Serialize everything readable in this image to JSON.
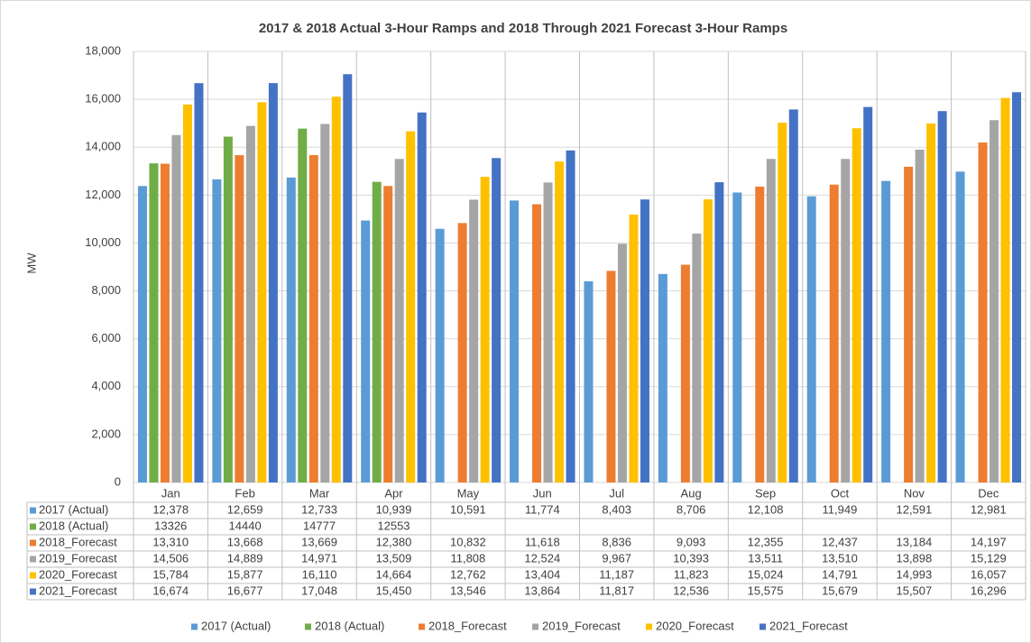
{
  "chart_data": {
    "type": "bar",
    "title": "2017 & 2018 Actual 3-Hour Ramps and 2018 Through 2021 Forecast 3-Hour Ramps",
    "y_label": "MW",
    "categories": [
      "Jan",
      "Feb",
      "Mar",
      "Apr",
      "May",
      "Jun",
      "Jul",
      "Aug",
      "Sep",
      "Oct",
      "Nov",
      "Dec"
    ],
    "ylim": [
      0,
      18000
    ],
    "yticks": [
      0,
      {
        "value": 2000,
        "label": "2,000"
      },
      {
        "value": 4000,
        "label": "4,000"
      },
      {
        "value": 6000,
        "label": "6,000"
      },
      {
        "value": 8000,
        "label": "8,000"
      },
      {
        "value": 10000,
        "label": "10,000"
      },
      {
        "value": 12000,
        "label": "12,000"
      },
      {
        "value": 14000,
        "label": "14,000"
      },
      {
        "value": 16000,
        "label": "16,000"
      },
      {
        "value": 18000,
        "label": "18,000"
      }
    ],
    "grid": true,
    "legend": "bottom",
    "series": [
      {
        "name": "2017 (Actual)",
        "color": "#5b9bd5",
        "values": [
          12378,
          12659,
          12733,
          10939,
          10591,
          11774,
          8403,
          8706,
          12108,
          11949,
          12591,
          12981
        ],
        "value_labels": [
          "12,378",
          "12,659",
          "12,733",
          "10,939",
          "10,591",
          "11,774",
          "8,403",
          "8,706",
          "12,108",
          "11,949",
          "12,591",
          "12,981"
        ]
      },
      {
        "name": "2018 (Actual)",
        "color": "#70ad47",
        "values": [
          13326,
          14440,
          14777,
          12553,
          null,
          null,
          null,
          null,
          null,
          null,
          null,
          null
        ]
      },
      {
        "name": "2018_Forecast",
        "color": "#ed7d31",
        "values": [
          13310,
          13668,
          13669,
          12380,
          10832,
          11618,
          8836,
          9093,
          12355,
          12437,
          13184,
          14197
        ],
        "value_labels": [
          "13,310",
          "13,668",
          "13,669",
          "12,380",
          "10,832",
          "11,618",
          "8,836",
          "9,093",
          "12,355",
          "12,437",
          "13,184",
          "14,197"
        ]
      },
      {
        "name": "2019_Forecast",
        "color": "#a5a5a5",
        "values": [
          14506,
          14889,
          14971,
          13509,
          11808,
          12524,
          9967,
          10393,
          13511,
          13510,
          13898,
          15129
        ],
        "value_labels": [
          "14,506",
          "14,889",
          "14,971",
          "13,509",
          "11,808",
          "12,524",
          "9,967",
          "10,393",
          "13,511",
          "13,510",
          "13,898",
          "15,129"
        ]
      },
      {
        "name": "2020_Forecast",
        "color": "#ffc000",
        "values": [
          15784,
          15877,
          16110,
          14664,
          12762,
          13404,
          11187,
          11823,
          15024,
          14791,
          14993,
          16057
        ],
        "value_labels": [
          "15,784",
          "15,877",
          "16,110",
          "14,664",
          "12,762",
          "13,404",
          "11,187",
          "11,823",
          "15,024",
          "14,791",
          "14,993",
          "16,057"
        ]
      },
      {
        "name": "2021_Forecast",
        "color": "#4472c4",
        "values": [
          16674,
          16677,
          17048,
          15450,
          13546,
          13864,
          11817,
          12536,
          15575,
          15679,
          15507,
          16296
        ],
        "value_labels": [
          "16,674",
          "16,677",
          "17,048",
          "15,450",
          "13,546",
          "13,864",
          "11,817",
          "12,536",
          "15,575",
          "15,679",
          "15,507",
          "16,296"
        ]
      }
    ]
  }
}
